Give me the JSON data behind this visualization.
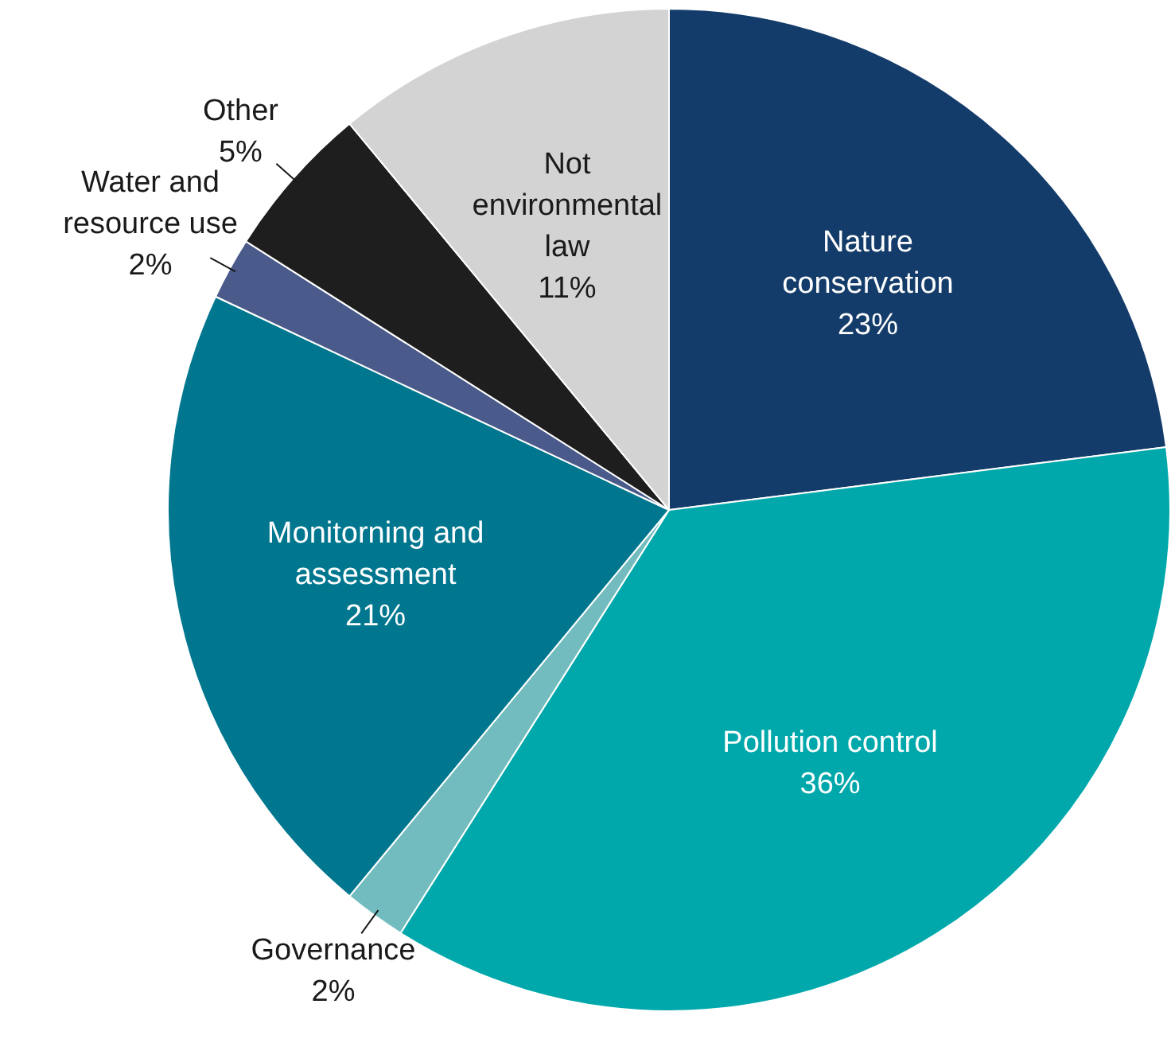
{
  "chart_data": {
    "type": "pie",
    "categories": [
      "Nature conservation",
      "Pollution control",
      "Governance",
      "Monitorning and assessment",
      "Water and resource use",
      "Other",
      "Not environmental law"
    ],
    "values": [
      23,
      36,
      2,
      21,
      2,
      5,
      11
    ],
    "colors": [
      "#143c6a",
      "#00a8ab",
      "#72bcbf",
      "#00778f",
      "#4a5a8a",
      "#1e1e1e",
      "#d3d3d3"
    ],
    "value_labels": [
      "23%",
      "36%",
      "2%",
      "21%",
      "2%",
      "5%",
      "11%"
    ],
    "legend": false
  }
}
